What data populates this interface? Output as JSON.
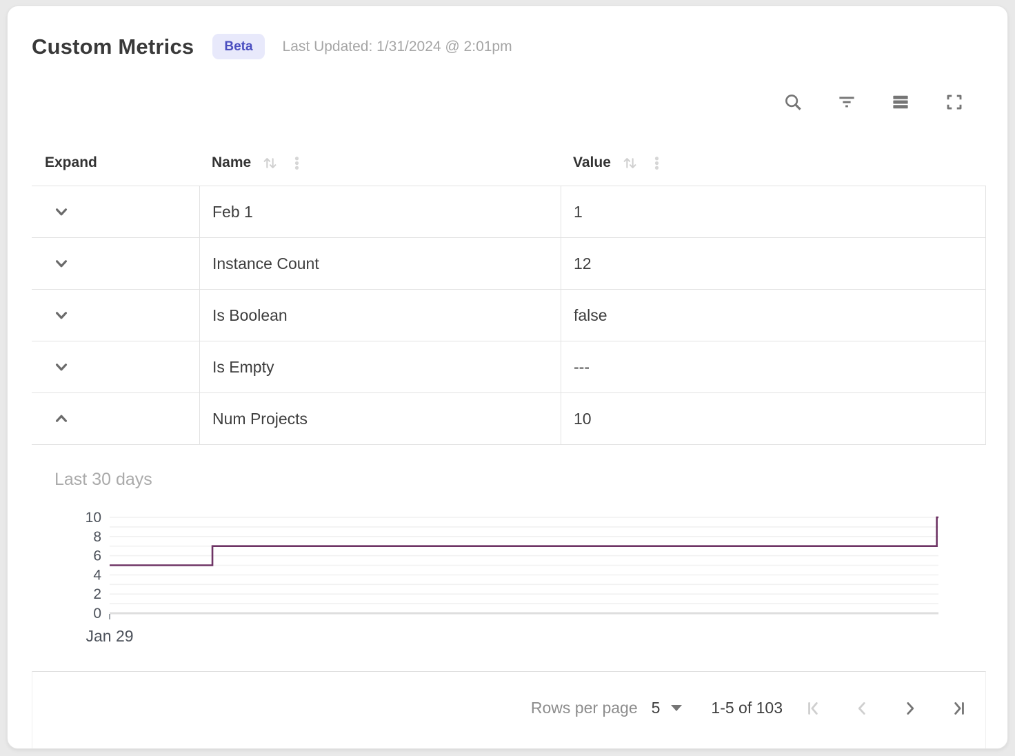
{
  "header": {
    "title": "Custom Metrics",
    "badge": "Beta",
    "last_updated": "Last Updated: 1/31/2024 @ 2:01pm"
  },
  "toolbar": {
    "icons": [
      "search",
      "filter",
      "density",
      "fullscreen"
    ]
  },
  "table": {
    "columns": [
      {
        "label": "Expand",
        "sortable": false,
        "menu": false
      },
      {
        "label": "Name",
        "sortable": true,
        "menu": true
      },
      {
        "label": "Value",
        "sortable": true,
        "menu": true
      }
    ],
    "rows": [
      {
        "name": "Feb 1",
        "value": "1",
        "expanded": false
      },
      {
        "name": "Instance Count",
        "value": "12",
        "expanded": false
      },
      {
        "name": "Is Boolean",
        "value": "false",
        "expanded": false
      },
      {
        "name": "Is Empty",
        "value": "---",
        "expanded": false
      },
      {
        "name": "Num Projects",
        "value": "10",
        "expanded": true
      }
    ]
  },
  "detail_panel": {
    "label": "Last 30 days"
  },
  "chart_data": {
    "type": "line",
    "subtype": "step",
    "title": "Last 30 days",
    "series": [
      {
        "name": "Num Projects",
        "x_frac": [
          0,
          0.124,
          0.124,
          0.998,
          0.998,
          1.0
        ],
        "y": [
          5,
          5,
          7,
          7,
          10,
          10
        ]
      }
    ],
    "x_ticks": [
      {
        "label": "Jan 29",
        "frac": 0
      }
    ],
    "y_ticks": [
      0,
      2,
      4,
      6,
      8,
      10
    ],
    "ylim": [
      0,
      10
    ],
    "grid": true,
    "grid_every": 1,
    "legend": false,
    "line_color": "#6e3465"
  },
  "footer": {
    "rows_per_page_label": "Rows per page",
    "rows_per_page_value": "5",
    "range_label": "1-5 of 103",
    "pagination": {
      "first_enabled": false,
      "prev_enabled": false,
      "next_enabled": true,
      "last_enabled": true
    }
  },
  "colors": {
    "accent": "#4b4fc0",
    "badge_bg": "#e8e9fb",
    "chart_line": "#6e3465",
    "grid_line": "#f1f1f1",
    "row_border": "#e2e2e2",
    "icon_gray": "#757575",
    "icon_disabled": "#cfcfcf"
  }
}
